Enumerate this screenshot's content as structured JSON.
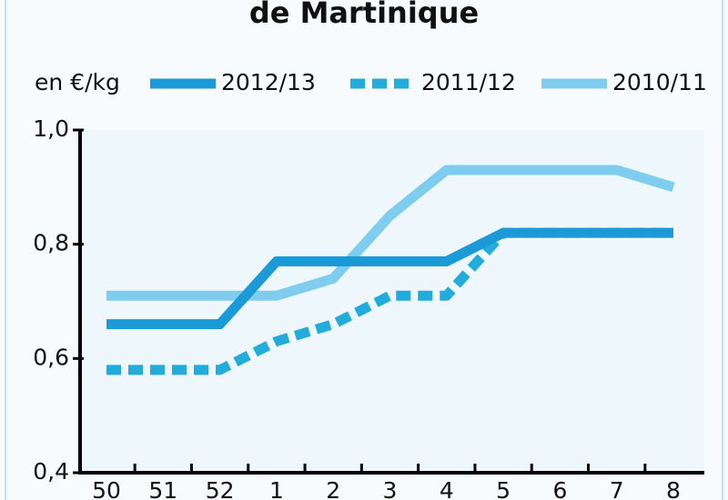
{
  "chart_data": {
    "type": "line",
    "title": "de Martinique",
    "y_label": "en €/kg",
    "categories": [
      "50",
      "51",
      "52",
      "1",
      "2",
      "3",
      "4",
      "5",
      "6",
      "7",
      "8"
    ],
    "series": [
      {
        "name": "2012/13",
        "color": "#1a9ad6",
        "line_style": "solid",
        "values": [
          0.66,
          0.66,
          0.66,
          0.77,
          0.77,
          0.77,
          0.77,
          0.82,
          0.82,
          0.82,
          0.82
        ]
      },
      {
        "name": "2011/12",
        "color": "#22acdc",
        "line_style": "dashed",
        "values": [
          0.58,
          0.58,
          0.58,
          0.63,
          0.66,
          0.71,
          0.71,
          0.82,
          0.82,
          0.82,
          0.82
        ]
      },
      {
        "name": "2010/11",
        "color": "#7fcdee",
        "line_style": "solid",
        "values": [
          0.71,
          0.71,
          0.71,
          0.71,
          0.74,
          0.85,
          0.93,
          0.93,
          0.93,
          0.93,
          0.9
        ]
      }
    ],
    "ylim": [
      0.4,
      1.0
    ],
    "yticks": [
      {
        "value": 0.4,
        "label": "0,4"
      },
      {
        "value": 0.6,
        "label": "0,6"
      },
      {
        "value": 0.8,
        "label": "0,8"
      },
      {
        "value": 1.0,
        "label": "1,0"
      }
    ],
    "grid": false
  }
}
